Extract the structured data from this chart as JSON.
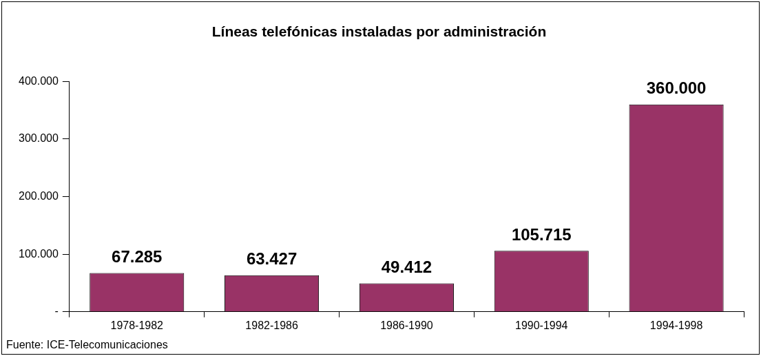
{
  "chart_data": {
    "type": "bar",
    "title": "Líneas telefónicas instaladas por administración",
    "categories": [
      "1978-1982",
      "1982-1986",
      "1986-1990",
      "1990-1994",
      "1994-1998"
    ],
    "values": [
      67285,
      63427,
      49412,
      105715,
      360000
    ],
    "value_labels": [
      "67.285",
      "63.427",
      "49.412",
      "105.715",
      "360.000"
    ],
    "color": "#993366",
    "ylim": [
      0,
      400000
    ],
    "yticks": [
      {
        "value": 0,
        "label": "-"
      },
      {
        "value": 100000,
        "label": "100.000"
      },
      {
        "value": 200000,
        "label": "200.000"
      },
      {
        "value": 300000,
        "label": "300.000"
      },
      {
        "value": 400000,
        "label": "400.000"
      }
    ],
    "grid": false,
    "legend": false,
    "annotations": [
      "Fuente: ICE-Telecomunicaciones"
    ]
  }
}
